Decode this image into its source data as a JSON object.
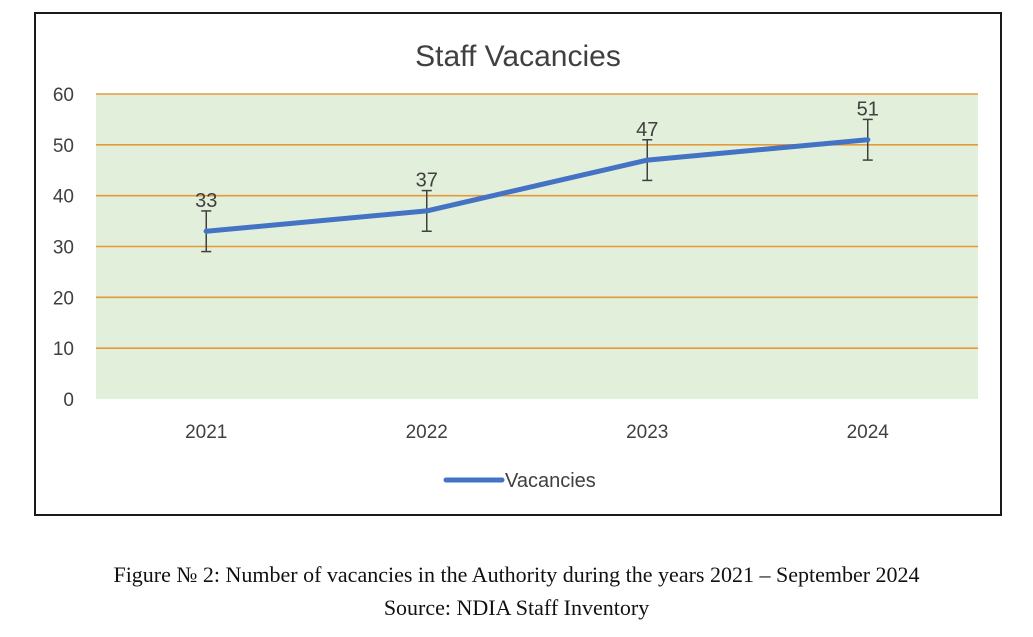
{
  "chart_data": {
    "type": "line",
    "title": "Staff Vacancies",
    "categories": [
      "2021",
      "2022",
      "2023",
      "2024"
    ],
    "series": [
      {
        "name": "Vacancies",
        "values": [
          33,
          37,
          47,
          51
        ],
        "error": [
          4,
          4,
          4,
          4
        ],
        "data_labels": [
          "33",
          "37",
          "47",
          "51"
        ]
      }
    ],
    "ylim": [
      0,
      60
    ],
    "yticks": [
      "0",
      "10",
      "20",
      "30",
      "40",
      "50",
      "60"
    ],
    "xlabel": "",
    "ylabel": "",
    "grid": true,
    "legend": "bottom",
    "colors": {
      "series": "#4472C4",
      "plot_background": "#E2EFDA",
      "gridline": "#E59A3A",
      "text": "#404040",
      "error_bar": "#404040"
    }
  },
  "figure": {
    "caption": "Figure № 2: Number of vacancies in the Authority during the years 2021 – September 2024",
    "source": "Source: NDIA Staff Inventory"
  }
}
